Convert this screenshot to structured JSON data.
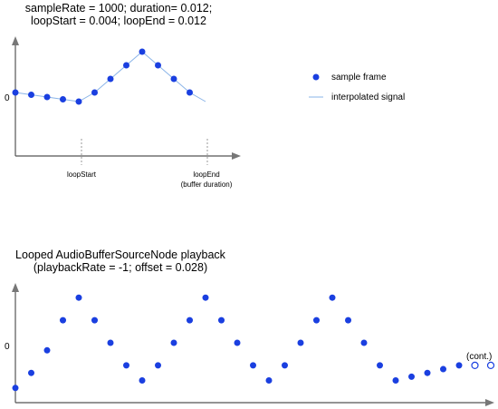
{
  "top_title_line1": "sampleRate = 1000; duration= 0.012;",
  "top_title_line2": "loopStart = 0.004; loopEnd = 0.012",
  "top_y_zero": "0",
  "label_loop_start": "loopStart",
  "label_loop_end": "loopEnd",
  "label_loop_end_note": "(buffer duration)",
  "legend_sample": "sample frame",
  "legend_interp": "interpolated signal",
  "bottom_title_line1": "Looped AudioBufferSourceNode playback",
  "bottom_title_line2": "(playbackRate = -1; offset = 0.028)",
  "bottom_y_zero": "0",
  "cont_label": "(cont.)",
  "colors": {
    "dot": "#1a3fe0",
    "line": "#8ab4e8",
    "axis": "#555555",
    "dash": "#999999"
  },
  "top_samples": [
    0.1,
    0.05,
    0,
    -0.05,
    -0.1,
    0.1,
    0.4,
    0.7,
    1.0,
    0.7,
    0.4,
    0.1
  ],
  "bottom_samples": [
    -0.6,
    -0.4,
    -0.1,
    0.3,
    0.6,
    0.3,
    0.0,
    -0.3,
    -0.5,
    -0.3,
    0.0,
    0.3,
    0.6,
    0.3,
    0.0,
    -0.3,
    -0.5,
    -0.3,
    0.0,
    0.3,
    0.6,
    0.3,
    0.0,
    -0.3,
    -0.5,
    -0.45,
    -0.4,
    -0.35,
    -0.3,
    -0.3,
    -0.3
  ]
}
